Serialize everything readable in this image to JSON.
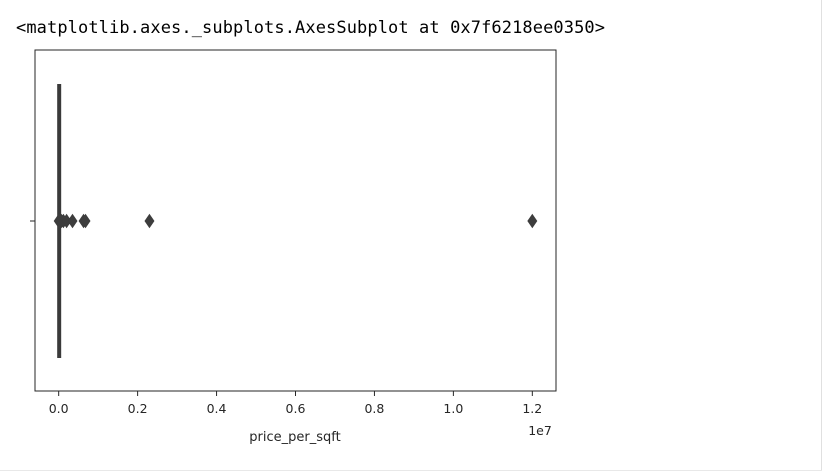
{
  "output": {
    "repr": "<matplotlib.axes._subplots.AxesSubplot at 0x7f6218ee0350>"
  },
  "chart_data": {
    "type": "boxplot",
    "orientation": "horizontal",
    "xlabel": "price_per_sqft",
    "offset_label": "1e7",
    "scale": 10000000,
    "xlim": [
      -0.06,
      1.26
    ],
    "xticks": [
      0.0,
      0.2,
      0.4,
      0.6,
      0.8,
      1.0,
      1.2
    ],
    "xtick_labels": [
      "0.0",
      "0.2",
      "0.4",
      "0.6",
      "0.8",
      "1.0",
      "1.2"
    ],
    "ytick_labels": [
      ""
    ],
    "box": {
      "min": 0.0,
      "q1": 0.0,
      "median": 0.0,
      "q3": 0.0,
      "max": 0.0
    },
    "outliers": [
      0.0,
      0.003,
      0.007,
      0.012,
      0.02,
      0.035,
      0.063,
      0.068,
      0.23,
      1.2
    ],
    "colors": {
      "box": "#3a3a3a",
      "outlier": "#3d3d3d",
      "axes": "#262626"
    },
    "grid": false
  }
}
